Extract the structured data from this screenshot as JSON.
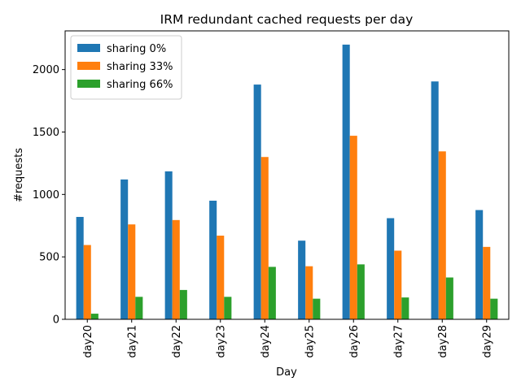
{
  "chart_data": {
    "type": "bar",
    "title": "IRM redundant cached requests per day",
    "xlabel": "Day",
    "ylabel": "#requests",
    "categories": [
      "day20",
      "day21",
      "day22",
      "day23",
      "day24",
      "day25",
      "day26",
      "day27",
      "day28",
      "day29"
    ],
    "series": [
      {
        "name": "sharing 0%",
        "color": "#1f77b4",
        "values": [
          820,
          1120,
          1185,
          950,
          1880,
          630,
          2200,
          810,
          1905,
          875
        ]
      },
      {
        "name": "sharing 33%",
        "color": "#ff7f0e",
        "values": [
          595,
          760,
          795,
          670,
          1300,
          425,
          1470,
          550,
          1345,
          580
        ]
      },
      {
        "name": "sharing 66%",
        "color": "#2ca02c",
        "values": [
          45,
          180,
          235,
          180,
          420,
          165,
          440,
          175,
          335,
          165
        ]
      }
    ],
    "ylim": [
      0,
      2310
    ],
    "yticks": [
      0,
      500,
      1000,
      1500,
      2000
    ],
    "legend_position": "top-left",
    "grid": false
  }
}
